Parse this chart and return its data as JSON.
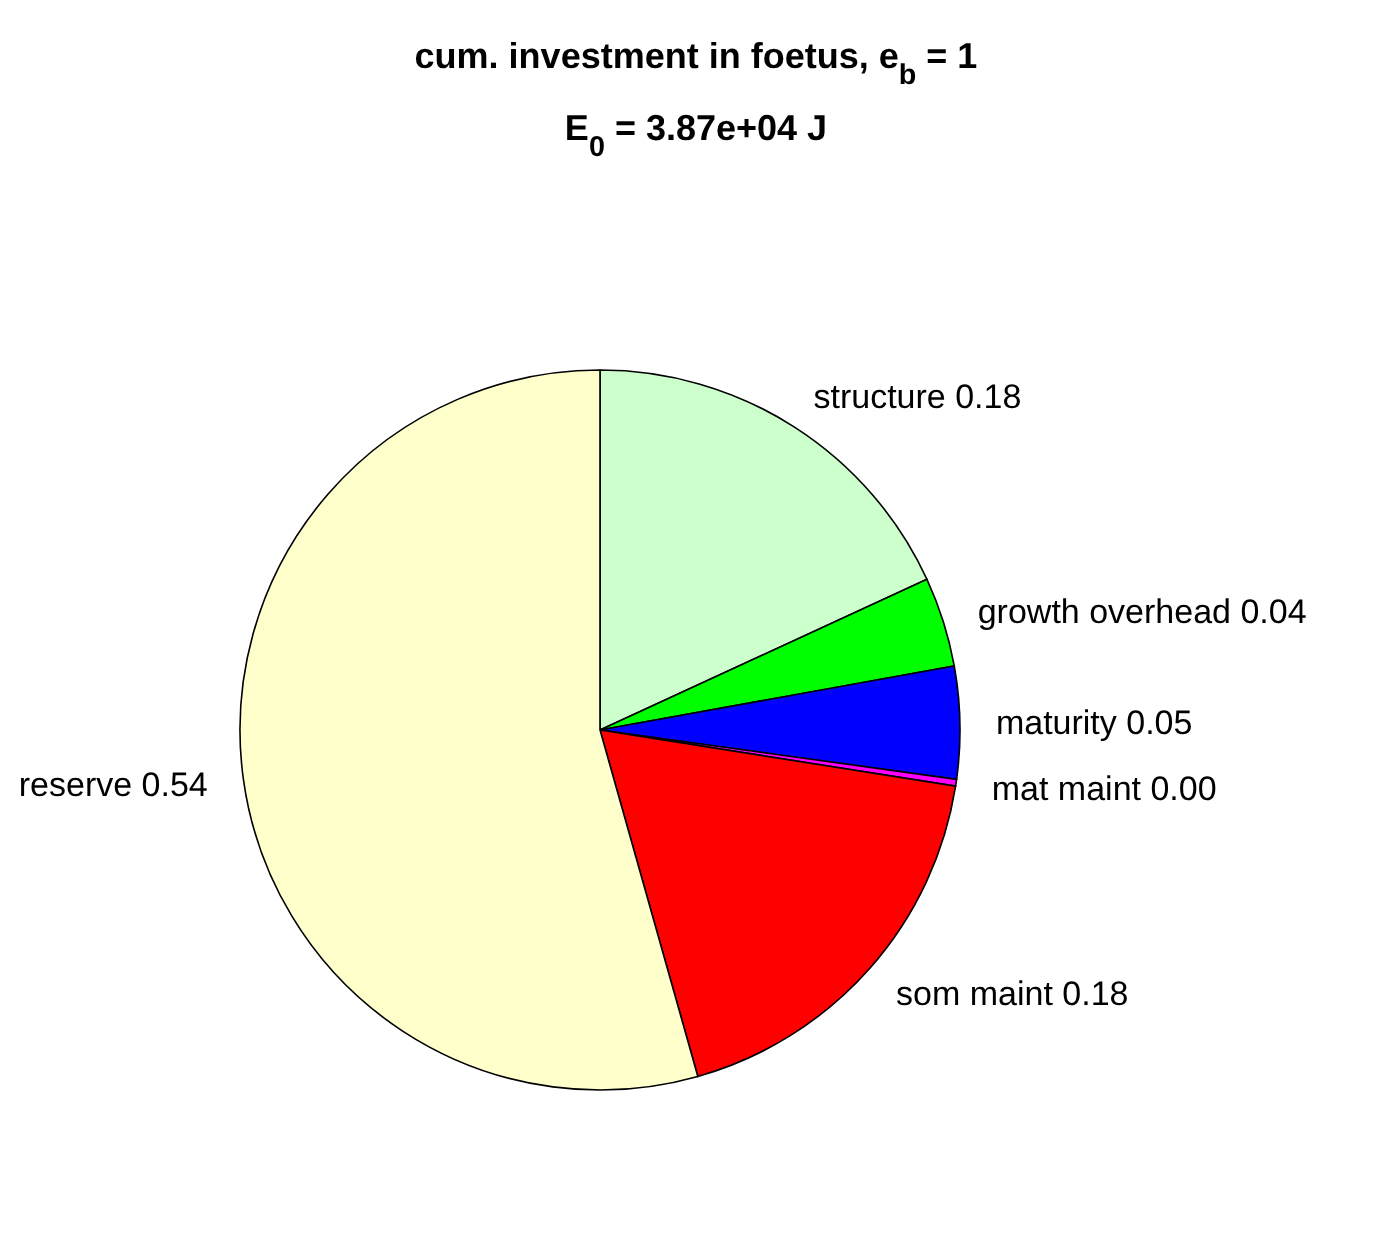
{
  "chart_data": {
    "type": "pie",
    "title": "cum. investment in foetus, e$_{b}$ = 1",
    "subtitle": "E$_{0}$ = 3.87e+04 J",
    "categories": [
      "structure",
      "growth overhead",
      "maturity",
      "mat maint",
      "som maint",
      "reserve"
    ],
    "values": [
      0.18,
      0.04,
      0.05,
      0.003,
      0.18,
      0.54
    ],
    "value_labels": [
      "0.18",
      "0.04",
      "0.05",
      "0.00",
      "0.18",
      "0.54"
    ],
    "colors": [
      "#ccffcc",
      "#00ff00",
      "#0000ff",
      "#ff00ff",
      "#ff0000",
      "#ffffcc"
    ],
    "legend": false
  }
}
